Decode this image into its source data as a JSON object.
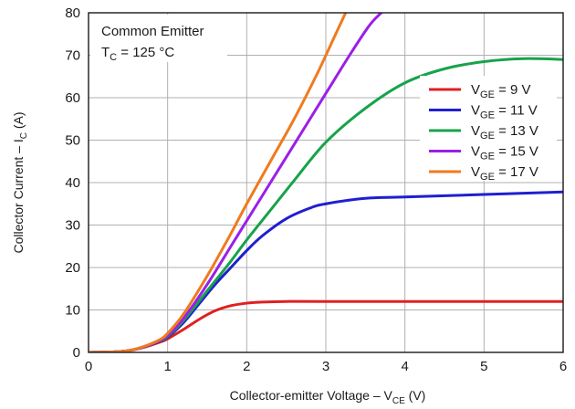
{
  "chart_data": {
    "type": "line",
    "xlabel": "Collector-emitter Voltage – V",
    "xlabel_sub": "CE",
    "xlabel_tail": " (V)",
    "ylabel": "Collector Current – I",
    "ylabel_sub": "C",
    "ylabel_tail": " (A)",
    "xlim": [
      0,
      6
    ],
    "ylim": [
      0,
      80
    ],
    "x_ticks": [
      "0",
      "1",
      "2",
      "3",
      "4",
      "5",
      "6"
    ],
    "y_ticks": [
      "0",
      "10",
      "20",
      "30",
      "40",
      "50",
      "60",
      "70",
      "80"
    ],
    "grid": true,
    "legend_position": "right",
    "annotation": {
      "line1": "Common Emitter",
      "line2_main": "T",
      "line2_sub": "C",
      "line2_tail": " = 125 °C"
    },
    "series": [
      {
        "name_main": "V",
        "name_sub": "GE",
        "name_tail": " = 9 V",
        "color": "#e02020",
        "points": [
          [
            0,
            0
          ],
          [
            0.3,
            0.1
          ],
          [
            0.5,
            0.4
          ],
          [
            0.7,
            1.2
          ],
          [
            0.9,
            2.4
          ],
          [
            1.0,
            3.2
          ],
          [
            1.2,
            5.4
          ],
          [
            1.4,
            7.8
          ],
          [
            1.6,
            9.8
          ],
          [
            1.8,
            11.0
          ],
          [
            2.0,
            11.6
          ],
          [
            2.2,
            11.85
          ],
          [
            2.5,
            12.0
          ],
          [
            3.0,
            12.0
          ],
          [
            4.0,
            12.0
          ],
          [
            5.0,
            12.0
          ],
          [
            6.0,
            12.0
          ]
        ]
      },
      {
        "name_main": "V",
        "name_sub": "GE",
        "name_tail": " = 11 V",
        "color": "#1f1fd0",
        "points": [
          [
            0,
            0
          ],
          [
            0.3,
            0.1
          ],
          [
            0.5,
            0.4
          ],
          [
            0.7,
            1.3
          ],
          [
            0.9,
            2.6
          ],
          [
            1.0,
            3.6
          ],
          [
            1.2,
            7.0
          ],
          [
            1.4,
            11.5
          ],
          [
            1.6,
            16.0
          ],
          [
            1.8,
            20.0
          ],
          [
            2.0,
            24.0
          ],
          [
            2.2,
            27.5
          ],
          [
            2.5,
            31.5
          ],
          [
            2.8,
            34.0
          ],
          [
            3.0,
            35.0
          ],
          [
            3.5,
            36.3
          ],
          [
            4.0,
            36.6
          ],
          [
            5.0,
            37.2
          ],
          [
            6.0,
            37.8
          ]
        ]
      },
      {
        "name_main": "V",
        "name_sub": "GE",
        "name_tail": " = 13 V",
        "color": "#17a34a",
        "points": [
          [
            0,
            0
          ],
          [
            0.3,
            0.1
          ],
          [
            0.5,
            0.4
          ],
          [
            0.7,
            1.3
          ],
          [
            0.9,
            2.7
          ],
          [
            1.0,
            3.8
          ],
          [
            1.2,
            7.5
          ],
          [
            1.5,
            14.5
          ],
          [
            1.8,
            21.5
          ],
          [
            2.0,
            26.5
          ],
          [
            2.3,
            33.5
          ],
          [
            2.6,
            40.5
          ],
          [
            3.0,
            49.5
          ],
          [
            3.5,
            57.5
          ],
          [
            4.0,
            63.5
          ],
          [
            4.5,
            66.8
          ],
          [
            5.0,
            68.5
          ],
          [
            5.5,
            69.2
          ],
          [
            6.0,
            69.0
          ]
        ]
      },
      {
        "name_main": "V",
        "name_sub": "GE",
        "name_tail": " = 15 V",
        "color": "#9b1fe8",
        "points": [
          [
            0,
            0
          ],
          [
            0.3,
            0.1
          ],
          [
            0.5,
            0.4
          ],
          [
            0.7,
            1.3
          ],
          [
            0.9,
            2.8
          ],
          [
            1.0,
            4.0
          ],
          [
            1.2,
            8.0
          ],
          [
            1.5,
            16.0
          ],
          [
            1.8,
            25.0
          ],
          [
            2.0,
            31.0
          ],
          [
            2.3,
            40.0
          ],
          [
            2.6,
            49.0
          ],
          [
            3.0,
            61.0
          ],
          [
            3.3,
            70.0
          ],
          [
            3.55,
            77.0
          ],
          [
            3.7,
            80.0
          ]
        ]
      },
      {
        "name_main": "V",
        "name_sub": "GE",
        "name_tail": " = 17 V",
        "color": "#f07a1e",
        "points": [
          [
            0,
            0
          ],
          [
            0.3,
            0.1
          ],
          [
            0.5,
            0.4
          ],
          [
            0.7,
            1.4
          ],
          [
            0.9,
            3.0
          ],
          [
            1.0,
            4.5
          ],
          [
            1.2,
            9.0
          ],
          [
            1.5,
            18.0
          ],
          [
            1.8,
            28.0
          ],
          [
            2.0,
            35.0
          ],
          [
            2.3,
            45.0
          ],
          [
            2.6,
            55.0
          ],
          [
            2.9,
            66.0
          ],
          [
            3.1,
            74.0
          ],
          [
            3.25,
            80.0
          ]
        ]
      }
    ]
  }
}
